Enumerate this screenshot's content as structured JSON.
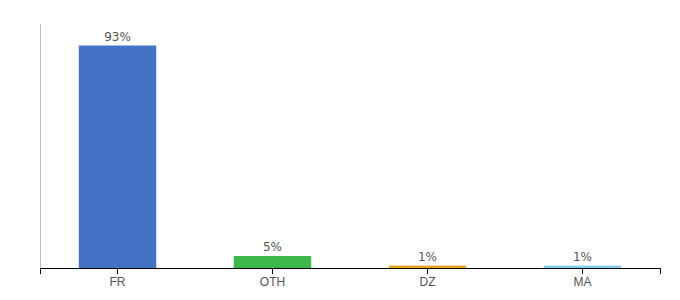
{
  "chart_data": {
    "type": "bar",
    "categories": [
      "FR",
      "OTH",
      "DZ",
      "MA"
    ],
    "values": [
      93,
      5,
      1,
      1
    ],
    "value_labels": [
      "93%",
      "5%",
      "1%",
      "1%"
    ],
    "colors": [
      "#4472c4",
      "#3cb84a",
      "#e6a817",
      "#7ecef4"
    ],
    "ylim": [
      0,
      102
    ],
    "data_labels": true,
    "tick_labels": "x"
  }
}
